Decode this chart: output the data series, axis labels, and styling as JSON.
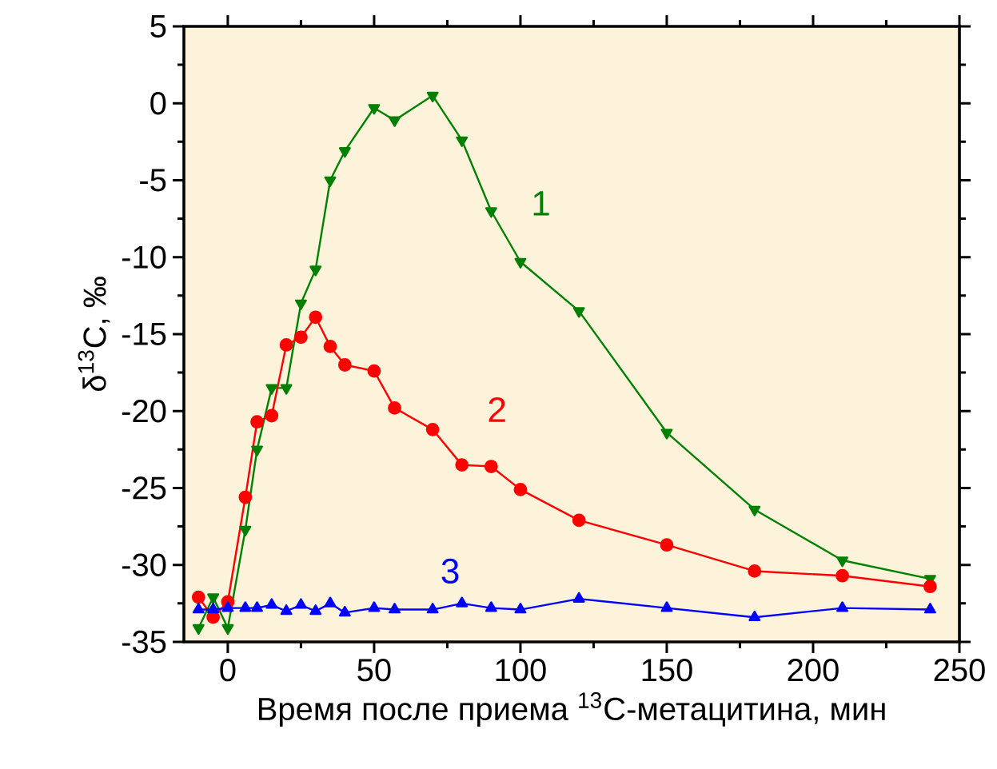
{
  "chart_data": {
    "type": "line",
    "xlabel": "Время после приема $^{13}$C-метацитина, мин",
    "ylabel": "δ$^{13}$C, ‰",
    "x": [
      -10,
      -5,
      0,
      6,
      10,
      15,
      20,
      25,
      30,
      35,
      40,
      50,
      57,
      70,
      80,
      90,
      100,
      120,
      150,
      180,
      210,
      240
    ],
    "series": [
      {
        "name": "1",
        "color": "#008000",
        "marker": "triangle_down",
        "values": [
          -34.1,
          -32.1,
          -34.1,
          -27.7,
          -22.5,
          -18.5,
          -18.5,
          -13.0,
          -10.8,
          -5.0,
          -3.1,
          -0.3,
          -1.1,
          0.5,
          -2.4,
          -7.0,
          -10.3,
          -13.5,
          -21.4,
          -26.4,
          -29.7,
          -30.9
        ]
      },
      {
        "name": "2",
        "color": "#ff0000",
        "marker": "circle",
        "values": [
          -32.1,
          -33.4,
          -32.4,
          -25.6,
          -20.7,
          -20.3,
          -15.7,
          -15.2,
          -13.9,
          -15.8,
          -17.0,
          -17.4,
          -19.8,
          -21.2,
          -23.5,
          -23.6,
          -25.1,
          -27.1,
          -28.7,
          -30.4,
          -30.7,
          -31.4
        ]
      },
      {
        "name": "3",
        "color": "#0000ff",
        "marker": "triangle",
        "values": [
          -32.9,
          -32.9,
          -32.8,
          -32.8,
          -32.8,
          -32.6,
          -33.0,
          -32.6,
          -33.0,
          -32.5,
          -33.1,
          -32.8,
          -32.9,
          -32.9,
          -32.5,
          -32.8,
          -32.9,
          -32.2,
          -32.8,
          -33.4,
          -32.8,
          -32.9
        ]
      }
    ],
    "xlim": [
      -15,
      250
    ],
    "ylim": [
      -35,
      5
    ],
    "xticks": [
      0,
      50,
      100,
      150,
      200,
      250
    ],
    "yticks": [
      -35,
      -30,
      -25,
      -20,
      -15,
      -10,
      -5,
      0,
      5
    ],
    "line_style": "solid",
    "grid": false
  }
}
